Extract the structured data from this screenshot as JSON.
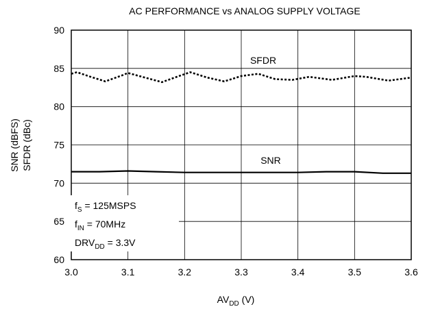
{
  "chart_data": {
    "type": "line",
    "title": "AC PERFORMANCE vs ANALOG SUPPLY VOLTAGE",
    "xlabel": {
      "main": "AV",
      "sub": "DD",
      "suffix": " (V)"
    },
    "ylabel_lines": [
      "SNR (dBFS)",
      "SFDR (dBc)"
    ],
    "xlim": [
      3.0,
      3.6
    ],
    "ylim": [
      60,
      90
    ],
    "x_ticks": [
      "3.0",
      "3.1",
      "3.2",
      "3.3",
      "3.4",
      "3.5",
      "3.6"
    ],
    "y_ticks": [
      "60",
      "65",
      "70",
      "75",
      "80",
      "85",
      "90"
    ],
    "grid": true,
    "series": [
      {
        "name": "SFDR",
        "style": "dotted",
        "x": [
          3.0,
          3.01,
          3.03,
          3.06,
          3.09,
          3.1,
          3.12,
          3.16,
          3.19,
          3.21,
          3.24,
          3.27,
          3.3,
          3.33,
          3.36,
          3.39,
          3.42,
          3.46,
          3.5,
          3.52,
          3.56,
          3.6
        ],
        "y": [
          84.3,
          84.5,
          84.0,
          83.3,
          84.1,
          84.4,
          84.0,
          83.2,
          84.0,
          84.5,
          83.8,
          83.3,
          84.0,
          84.3,
          83.6,
          83.5,
          83.9,
          83.5,
          84.0,
          83.9,
          83.4,
          83.8
        ]
      },
      {
        "name": "SNR",
        "style": "solid",
        "x": [
          3.0,
          3.05,
          3.1,
          3.15,
          3.2,
          3.25,
          3.3,
          3.35,
          3.4,
          3.45,
          3.5,
          3.55,
          3.6
        ],
        "y": [
          71.5,
          71.5,
          71.6,
          71.5,
          71.4,
          71.4,
          71.4,
          71.4,
          71.4,
          71.5,
          71.5,
          71.3,
          71.3
        ]
      }
    ],
    "annotations": [
      {
        "main": "f",
        "sub": "S",
        "suffix": " = 125MSPS"
      },
      {
        "main": "f",
        "sub": "IN",
        "suffix": " = 70MHz"
      },
      {
        "main": "DRV",
        "sub": "DD",
        "suffix": " = 3.3V"
      }
    ],
    "colors": {
      "line": "#000000",
      "grid": "#000000"
    }
  }
}
